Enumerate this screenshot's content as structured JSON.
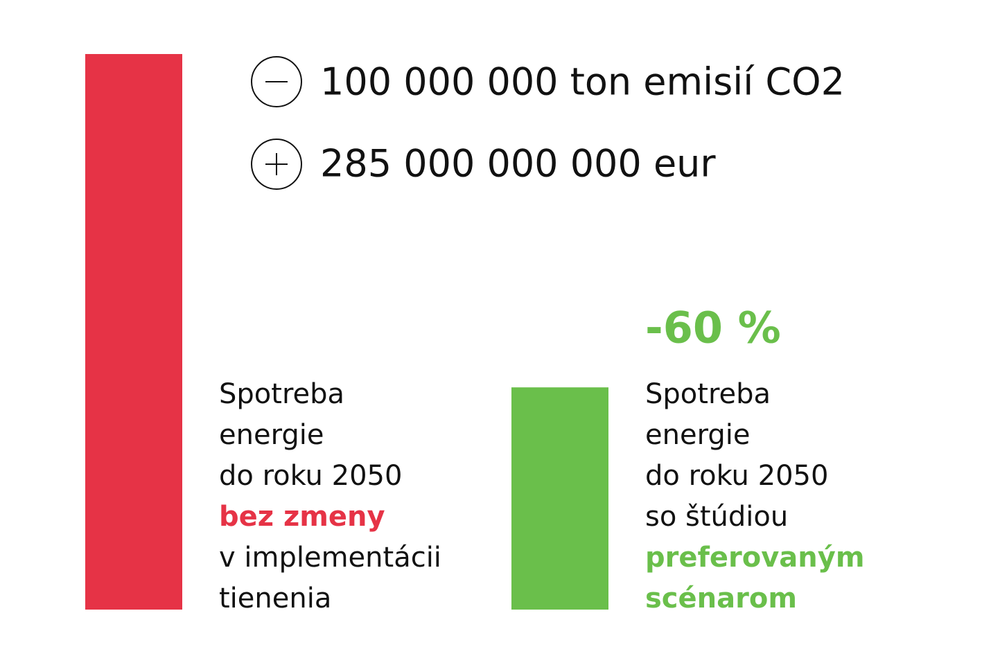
{
  "chart_data": {
    "type": "bar",
    "values": [
      100,
      40
    ],
    "colors": [
      "#e63346",
      "#6abf4b"
    ],
    "ylim": [
      0,
      100
    ],
    "annotation": "-60 %",
    "stats": [
      "100 000 000 ton emisií CO2",
      "285 000 000 000 eur"
    ],
    "labels": [
      [
        {
          "text": "Spotreba",
          "em": false
        },
        {
          "text": "energie",
          "em": false
        },
        {
          "text": "do roku 2050",
          "em": false
        },
        {
          "text": "bez zmeny",
          "em": true
        },
        {
          "text": "v implementácii",
          "em": false
        },
        {
          "text": "tienenia",
          "em": false
        }
      ],
      [
        {
          "text": "Spotreba",
          "em": false
        },
        {
          "text": "energie",
          "em": false
        },
        {
          "text": "do roku 2050",
          "em": false
        },
        {
          "text": "so štúdiou",
          "em": false
        },
        {
          "text": "preferovaným",
          "em": true
        },
        {
          "text": "scénarom",
          "em": true
        }
      ]
    ]
  }
}
